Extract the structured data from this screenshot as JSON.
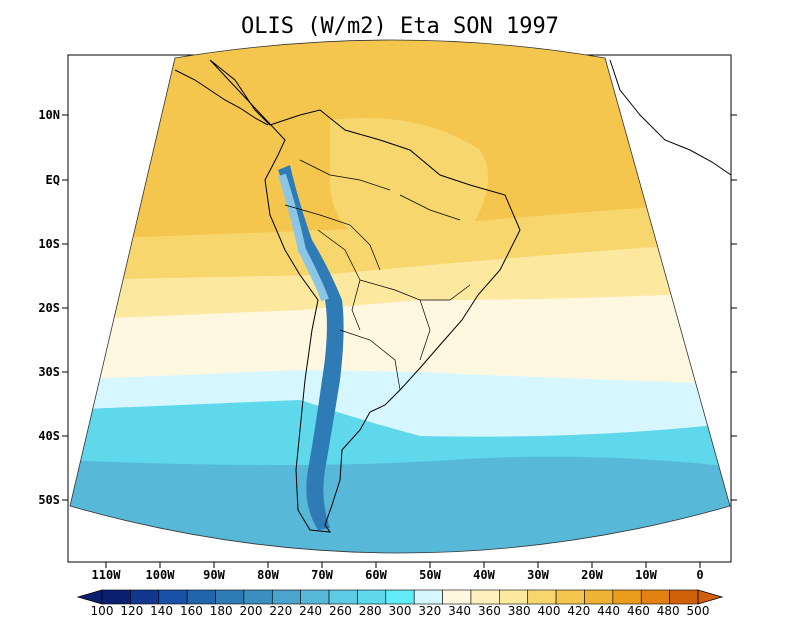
{
  "title": "OLIS (W/m2) Eta SON 1997",
  "map": {
    "lat_labels": [
      "10N",
      "EQ",
      "10S",
      "20S",
      "30S",
      "40S",
      "50S"
    ],
    "lat_values": [
      10,
      0,
      -10,
      -20,
      -30,
      -40,
      -50
    ],
    "lon_labels": [
      "110W",
      "100W",
      "90W",
      "80W",
      "70W",
      "60W",
      "50W",
      "40W",
      "30W",
      "20W",
      "10W",
      "0"
    ],
    "lon_values": [
      -110,
      -100,
      -90,
      -80,
      -70,
      -60,
      -50,
      -40,
      -30,
      -20,
      -10,
      0
    ],
    "lon_range": [
      -117,
      3
    ],
    "lat_range": [
      -60,
      19
    ]
  },
  "colorbar": {
    "labels": [
      "100",
      "120",
      "140",
      "160",
      "180",
      "200",
      "220",
      "240",
      "260",
      "280",
      "300",
      "320",
      "340",
      "360",
      "380",
      "400",
      "420",
      "440",
      "460",
      "480",
      "500"
    ],
    "colors": [
      "#0a1f6e",
      "#12378f",
      "#1a52a8",
      "#2166ac",
      "#2e7bb6",
      "#3b8fc0",
      "#4aa4cc",
      "#57b8d8",
      "#5ecbe4",
      "#5fd8ec",
      "#62ecf8",
      "#d6f7ff",
      "#fff7df",
      "#fff0bd",
      "#fde8a0",
      "#f8d66e",
      "#f4c64e",
      "#f0b232",
      "#ea9c1c",
      "#e28212",
      "#d0600a"
    ]
  },
  "colors": {
    "ocean_south": "#5fd8ec",
    "ocean_mid": "#d6f7ff",
    "subtropical": "#fff7df",
    "tropical": "#f4c64e",
    "andes": "#2e7bb6"
  }
}
